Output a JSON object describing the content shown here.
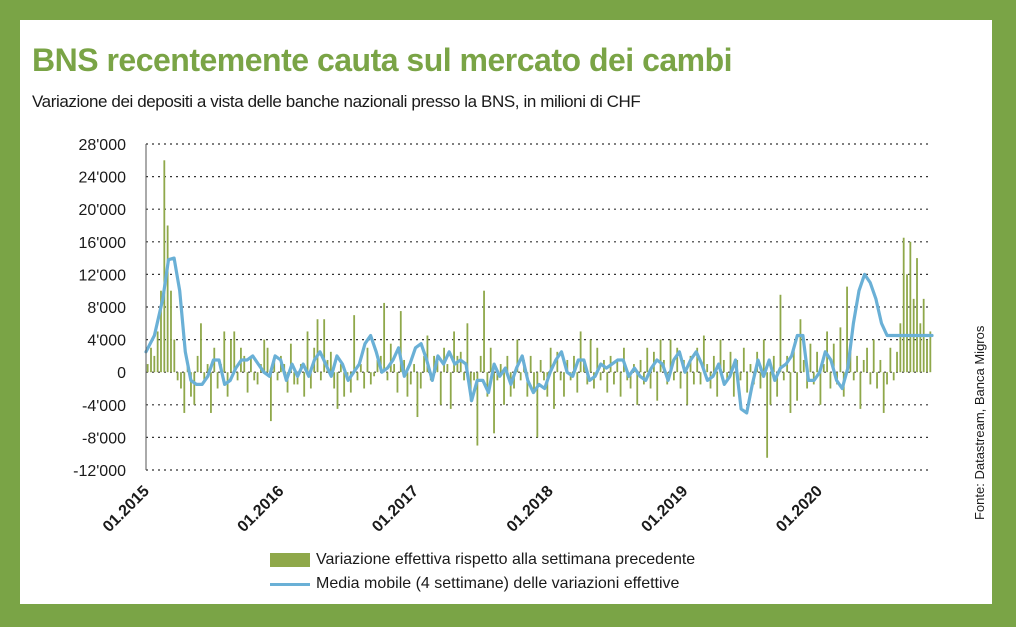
{
  "title": "BNS recentemente cauta sul mercato dei cambi",
  "subtitle": "Variazione dei depositi a vista delle banche nazionali presso la BNS, in milioni di CHF",
  "source": "Fonte: Datastream, Banca Migros",
  "colors": {
    "frame": "#7aa446",
    "bars": "#8fa84a",
    "line": "#6ab0d6",
    "grid": "#333333"
  },
  "chart_data": {
    "type": "bar",
    "title": "BNS recentemente cauta sul mercato dei cambi",
    "ylim": [
      -12000,
      28000
    ],
    "y_ticks": [
      28000,
      24000,
      20000,
      16000,
      12000,
      8000,
      4000,
      0,
      -4000,
      -8000,
      -12000
    ],
    "y_tick_labels": [
      "28'000",
      "24'000",
      "20'000",
      "16'000",
      "12'000",
      "8'000",
      "4'000",
      "0",
      "-4'000",
      "-8'000",
      "-12'000"
    ],
    "x_tick_labels": [
      "01.2015",
      "01.2016",
      "01.2017",
      "01.2018",
      "01.2019",
      "01.2020"
    ],
    "x_range_weeks": [
      0,
      280
    ],
    "grid": "horizontal dotted",
    "legend_position": "bottom",
    "series": [
      {
        "name": "Variazione effettiva rispetto alla settimana precedente",
        "type": "bar",
        "values": [
          1000,
          3000,
          2000,
          5000,
          10000,
          26000,
          18000,
          10000,
          4000,
          -1000,
          -2000,
          -5000,
          1500,
          -3000,
          -4000,
          2000,
          6000,
          -1000,
          1000,
          -5000,
          3000,
          -2000,
          1000,
          5000,
          -3000,
          4000,
          5000,
          -1000,
          3000,
          2000,
          -2500,
          2000,
          -1000,
          -1500,
          1000,
          4000,
          3000,
          -6000,
          1500,
          -1000,
          2000,
          1000,
          -2500,
          3500,
          -1500,
          -1500,
          1000,
          -3000,
          5000,
          -2000,
          3000,
          6500,
          -1000,
          6500,
          1500,
          2500,
          -2000,
          -4500,
          1000,
          -3000,
          -1000,
          -2500,
          7000,
          -1000,
          1000,
          -2000,
          3000,
          -1500,
          -500,
          1500,
          2000,
          8500,
          -1000,
          3500,
          1000,
          -2500,
          7500,
          1500,
          -3000,
          -1500,
          1000,
          -5500,
          -2000,
          2000,
          4500,
          -1000,
          2000,
          1500,
          -4000,
          3000,
          1000,
          -4500,
          5000,
          2000,
          2500,
          -1000,
          6000,
          -3500,
          -1000,
          -9000,
          2000,
          10000,
          -3000,
          3000,
          -7500,
          -1000,
          1000,
          -4000,
          2000,
          -3000,
          -2000,
          4000,
          -1000,
          1500,
          -3000,
          2000,
          -2500,
          -8000,
          1500,
          -1000,
          -3000,
          3000,
          -4500,
          2500,
          -1000,
          -3000,
          1500,
          -1000,
          2000,
          -2500,
          5000,
          1500,
          -1500,
          4000,
          -2000,
          3000,
          -1000,
          1500,
          -2500,
          2000,
          -1500,
          1500,
          -3000,
          3000,
          -1000,
          -2000,
          1000,
          -4000,
          1500,
          -1500,
          3000,
          -2000,
          2500,
          -3500,
          4000,
          1500,
          -1500,
          4000,
          -1000,
          3000,
          -2000,
          1500,
          -4000,
          2000,
          -1500,
          3000,
          -1500,
          4500,
          1000,
          -2000,
          2000,
          -3000,
          4000,
          1500,
          -1000,
          2500,
          -3000,
          1500,
          -1000,
          3000,
          -2500,
          1000,
          -1500,
          2500,
          -2000,
          4000,
          -10500,
          -4000,
          2000,
          -3000,
          9500,
          -1000,
          2000,
          -5000,
          3000,
          -3500,
          6500,
          1500,
          -2000,
          3500,
          -1500,
          2500,
          -4000,
          1000,
          5000,
          -2000,
          3500,
          -1500,
          5500,
          -3000,
          10500,
          2500,
          -1000,
          2000,
          -4500,
          1500,
          3000,
          -1500,
          4000,
          -2000,
          1500,
          -5000,
          -1500,
          3000,
          -1000,
          2500,
          6000,
          16500,
          12000,
          16000,
          9000,
          14000,
          6000,
          9000,
          4000,
          5000
        ]
      },
      {
        "name": "Media mobile (4 settimane) delle variazioni effettive",
        "type": "line",
        "x": [
          0,
          3,
          6,
          8,
          10,
          12,
          14,
          16,
          18,
          20,
          22,
          24,
          26,
          28,
          30,
          32,
          34,
          36,
          38,
          40,
          42,
          44,
          46,
          48,
          50,
          52,
          54,
          56,
          58,
          60,
          62,
          64,
          66,
          68,
          70,
          72,
          74,
          76,
          78,
          80,
          82,
          84,
          86,
          88,
          90,
          92,
          94,
          96,
          98,
          100,
          102,
          104,
          106,
          108,
          110,
          112,
          114,
          116,
          118,
          120,
          122,
          124,
          126,
          128,
          130,
          132,
          134,
          136,
          138,
          140,
          142,
          144,
          146,
          148,
          150,
          152,
          154,
          156,
          158,
          160,
          162,
          164,
          166,
          168,
          170,
          172,
          174,
          176,
          178,
          180,
          182,
          184,
          186,
          188,
          190,
          192,
          194,
          196,
          198,
          200,
          202,
          204,
          206,
          208,
          210,
          212,
          214,
          216,
          218,
          220,
          222,
          224,
          226,
          228,
          230,
          232,
          234,
          236,
          238,
          240,
          242,
          244,
          246,
          248,
          250,
          252,
          254,
          256,
          258,
          260,
          262,
          264,
          266,
          268,
          270,
          272,
          274,
          276,
          278,
          280
        ],
        "values": [
          2500,
          4500,
          9000,
          13800,
          14000,
          10000,
          2500,
          -1000,
          -1500,
          -1500,
          -500,
          1500,
          1500,
          -1500,
          -1000,
          500,
          1500,
          1500,
          2000,
          1000,
          0,
          -500,
          2000,
          1500,
          -1000,
          1000,
          -500,
          1000,
          -500,
          1500,
          2500,
          1000,
          -500,
          2000,
          1000,
          -1000,
          0,
          1000,
          3500,
          4500,
          2500,
          0,
          500,
          1500,
          3000,
          -500,
          1000,
          3000,
          3500,
          1500,
          -1000,
          2000,
          1000,
          2500,
          1000,
          1500,
          1000,
          -3500,
          -1000,
          -1000,
          -2500,
          1000,
          -500,
          500,
          -1500,
          500,
          2000,
          -1000,
          -2500,
          -1500,
          -2000,
          0,
          1500,
          2500,
          0,
          -500,
          1500,
          1500,
          -1000,
          -500,
          1000,
          500,
          1000,
          1500,
          1500,
          -500,
          500,
          -500,
          -1000,
          500,
          1500,
          1000,
          -1000,
          1500,
          2500,
          0,
          1500,
          2500,
          1000,
          -1000,
          -500,
          1000,
          -1500,
          -500,
          1500,
          -4500,
          -5000,
          -1500,
          1500,
          -500,
          1500,
          -1000,
          500,
          1000,
          2000,
          4500,
          4500,
          -1000,
          -1000,
          0,
          2500,
          1500,
          -1000,
          -2000,
          500,
          6000,
          10000,
          12000,
          11000,
          9000,
          6000,
          4500,
          4500,
          4500,
          4500,
          4500,
          4500,
          4500,
          4500,
          4500
        ]
      }
    ]
  }
}
